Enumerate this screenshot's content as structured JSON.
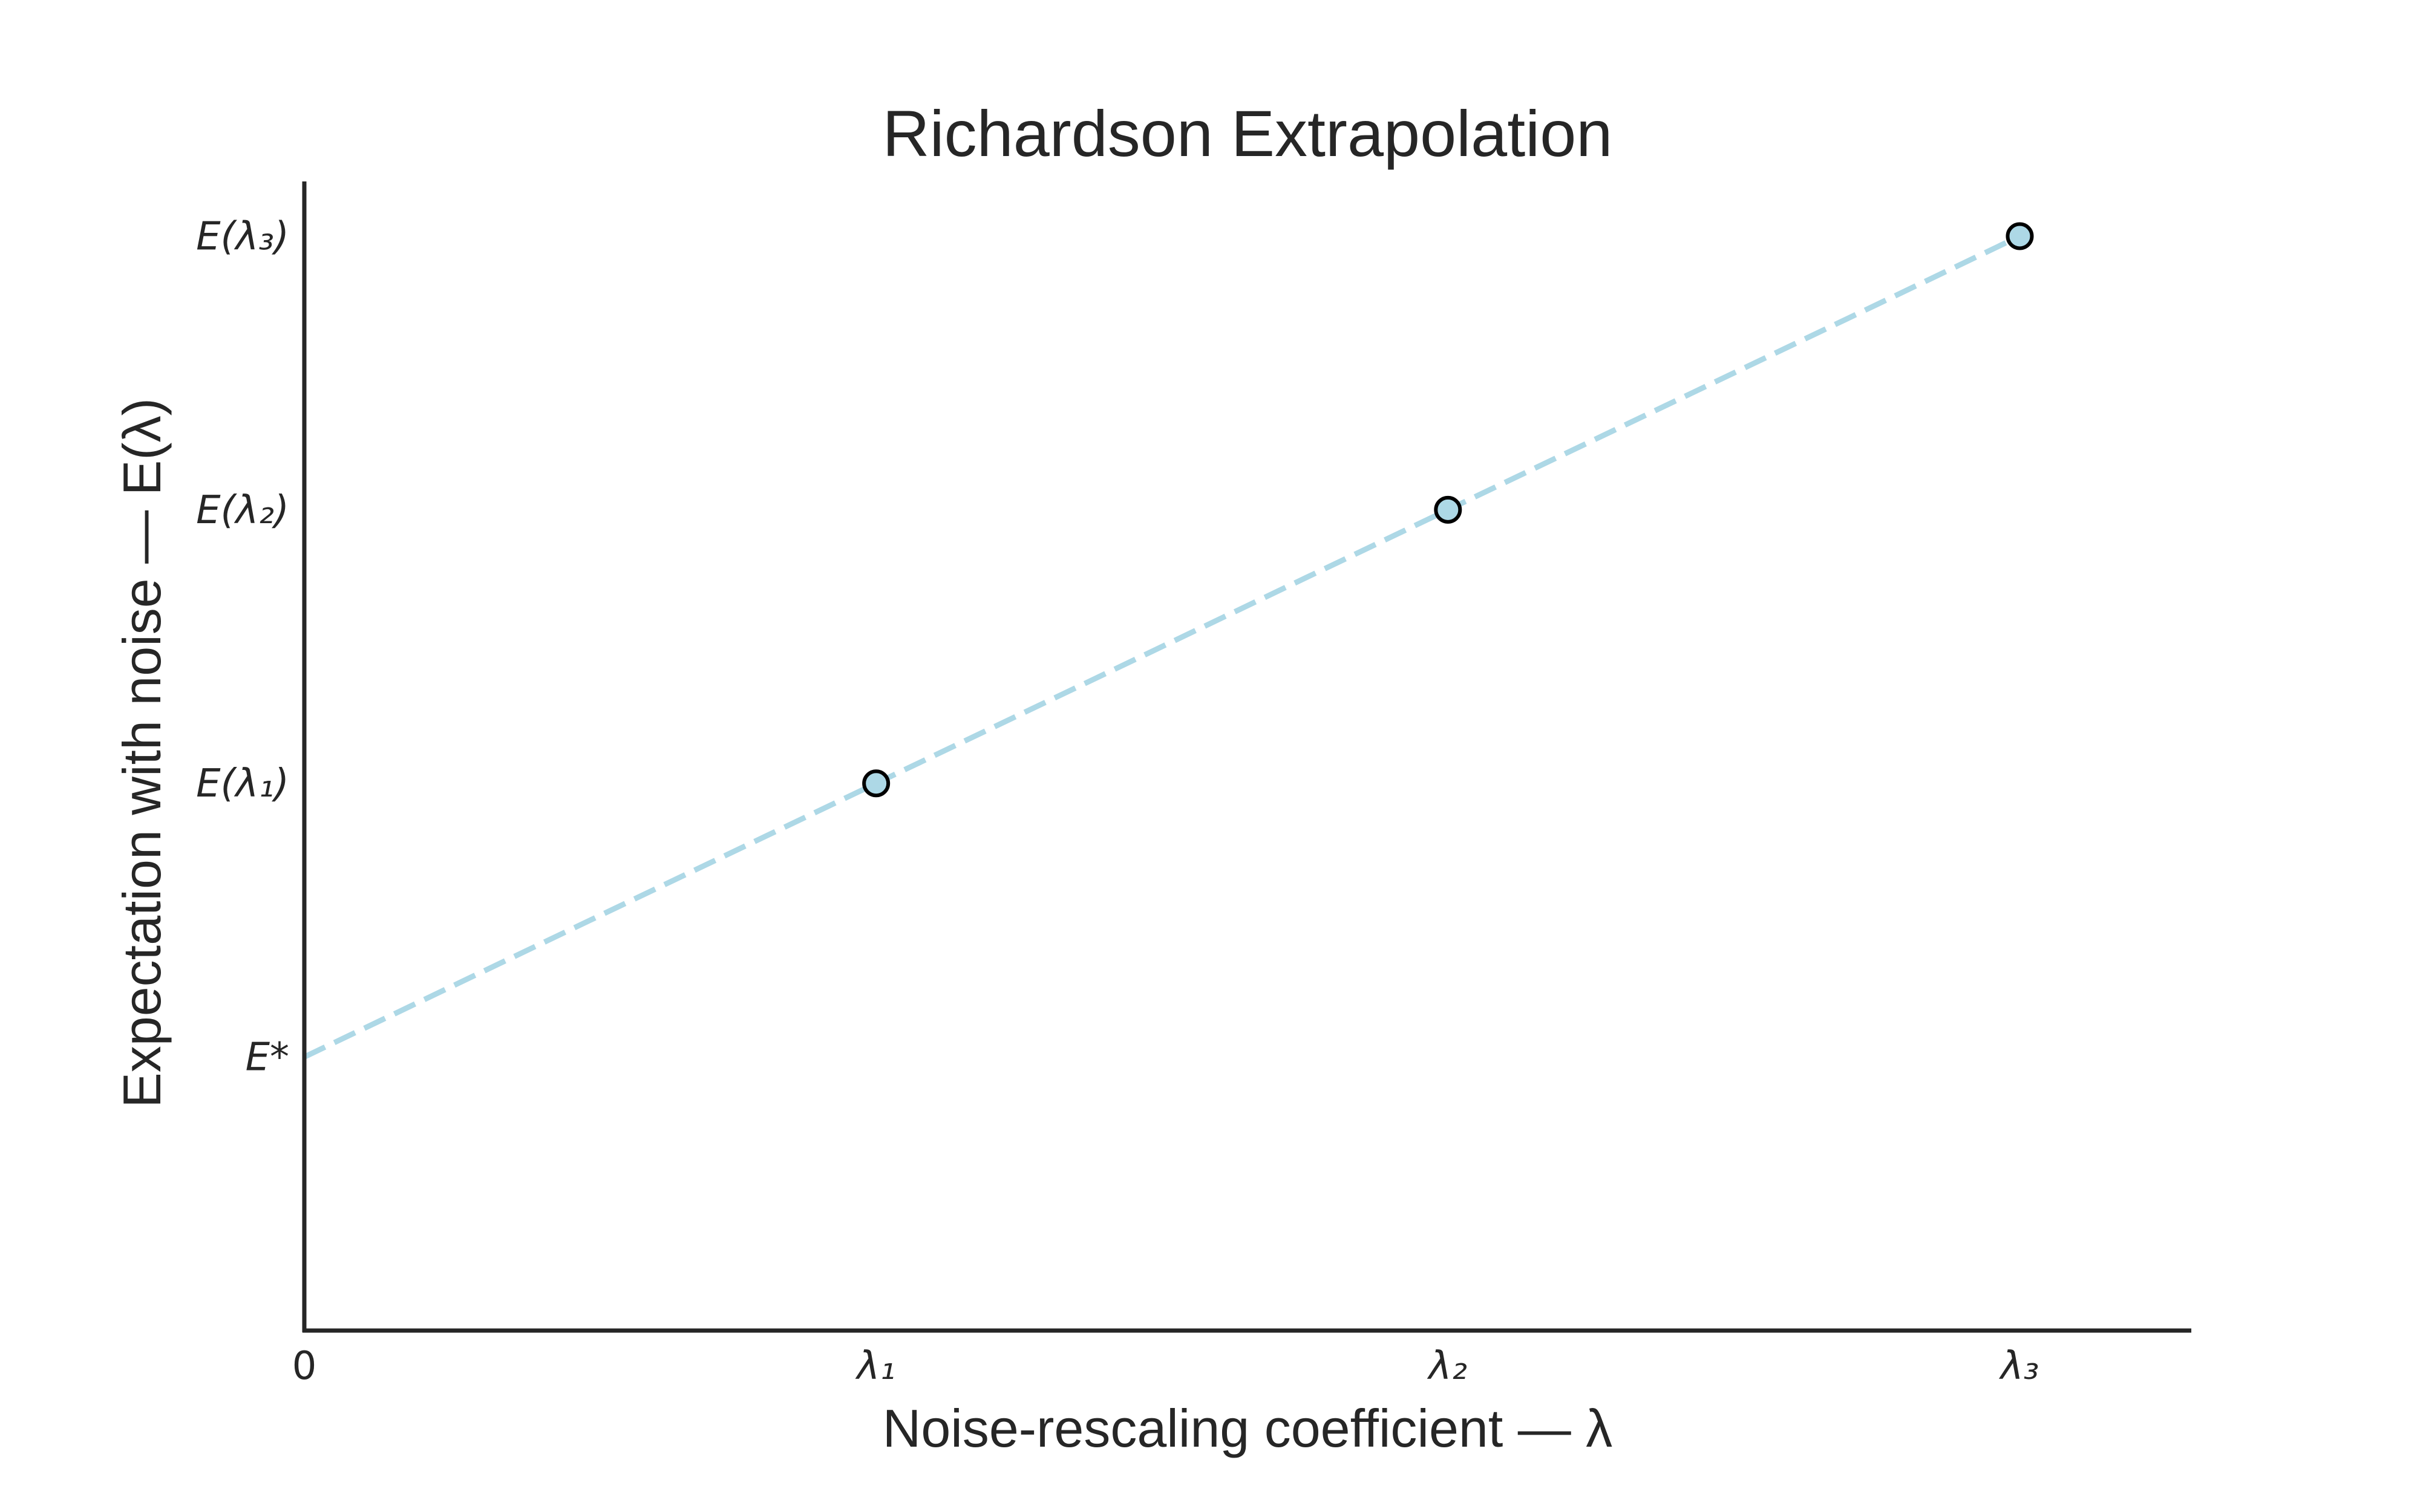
{
  "chart_data": {
    "type": "line",
    "title": "Richardson Extrapolation",
    "xlabel": "Noise-rescaling coefficient — λ",
    "ylabel": "Expectation with noise — E(λ)",
    "x_ticks": [
      {
        "value": 0,
        "label": "0"
      },
      {
        "value": 1,
        "label": "λ₁"
      },
      {
        "value": 2,
        "label": "λ₂"
      },
      {
        "value": 3,
        "label": "λ₃"
      }
    ],
    "y_ticks": [
      {
        "value": 0,
        "label": "E*"
      },
      {
        "value": 1,
        "label": "E(λ₁)"
      },
      {
        "value": 2,
        "label": "E(λ₂)"
      },
      {
        "value": 3,
        "label": "E(λ₃)"
      }
    ],
    "xlim": [
      0,
      3.3
    ],
    "ylim": [
      -1,
      3.2
    ],
    "fit_line": {
      "x": [
        0,
        1,
        2,
        3
      ],
      "y": [
        0,
        1,
        2,
        3
      ],
      "style": "dashed",
      "color": "#add8e6"
    },
    "points": {
      "x": [
        1,
        2,
        3
      ],
      "y": [
        1,
        2,
        3
      ],
      "fill": "#add8e6",
      "edge": "#000000"
    },
    "grid": false,
    "legend": "none"
  }
}
